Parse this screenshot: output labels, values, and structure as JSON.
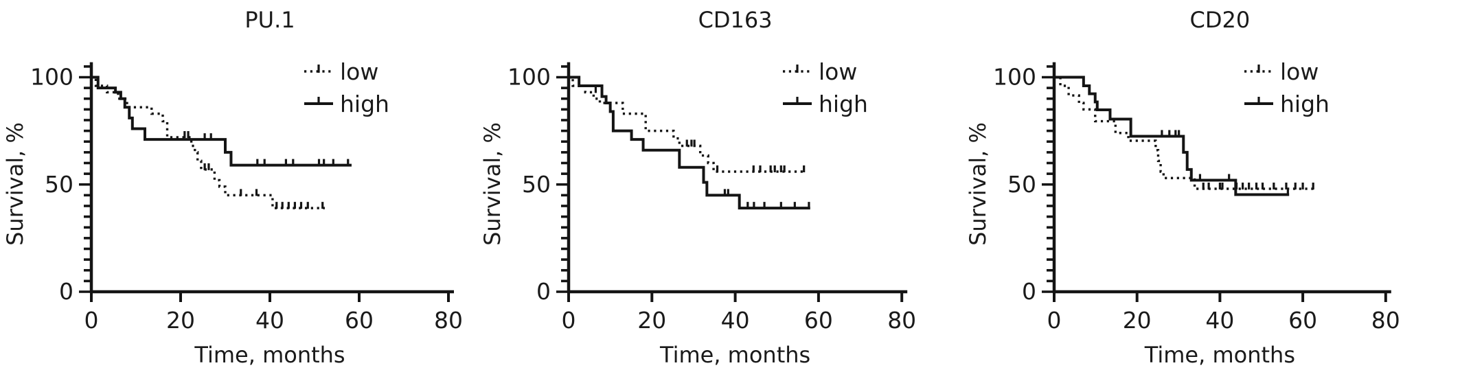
{
  "figure": {
    "background": "#ffffff",
    "line_color": "#141414",
    "text_color": "#1a1a1a",
    "xlabel": "Time, months",
    "ylabel": "Survival, %",
    "x_tick_labels": [
      "0",
      "20",
      "40",
      "60",
      "80"
    ],
    "y_tick_labels": [
      "0",
      "50",
      "100"
    ],
    "legend": {
      "low_label": "low",
      "high_label": "high"
    }
  },
  "chart_data": [
    {
      "type": "line",
      "subtype": "kaplan-meier-step",
      "title": "PU.1",
      "xlabel": "Time, months",
      "ylabel": "Survival, %",
      "xlim": [
        0,
        80
      ],
      "ylim": [
        0,
        105
      ],
      "x_ticks": [
        0,
        20,
        40,
        60,
        80
      ],
      "y_ticks": [
        0,
        50,
        100
      ],
      "y_minor_tick_step": 5,
      "grid": false,
      "legend_position": "top-right",
      "series": [
        {
          "name": "low",
          "style": "dotted",
          "steps": [
            [
              0,
              100
            ],
            [
              1,
              96
            ],
            [
              3.5,
              93
            ],
            [
              6,
              90
            ],
            [
              8,
              86
            ],
            [
              13.5,
              83
            ],
            [
              16,
              79.5
            ],
            [
              17,
              72
            ],
            [
              22.4,
              68
            ],
            [
              23.2,
              65
            ],
            [
              23.8,
              61
            ],
            [
              24.6,
              57
            ],
            [
              27.6,
              52
            ],
            [
              28.7,
              49
            ],
            [
              30,
              45
            ],
            [
              40.6,
              39
            ]
          ],
          "end_time": 52.3,
          "censor_marks": [
            [
              20.9,
              72
            ],
            [
              21.7,
              72
            ],
            [
              25.4,
              57
            ],
            [
              26.3,
              57
            ],
            [
              33.5,
              45
            ],
            [
              37,
              45
            ],
            [
              41.5,
              39
            ],
            [
              42.8,
              39
            ],
            [
              44.2,
              39
            ],
            [
              45.6,
              39
            ],
            [
              47,
              39
            ],
            [
              48.5,
              39
            ],
            [
              51.8,
              39
            ]
          ]
        },
        {
          "name": "high",
          "style": "solid",
          "steps": [
            [
              0,
              100
            ],
            [
              1.5,
              95
            ],
            [
              5.4,
              93
            ],
            [
              6.6,
              90
            ],
            [
              7.5,
              86
            ],
            [
              8.5,
              81
            ],
            [
              9.2,
              76
            ],
            [
              12,
              71
            ],
            [
              30,
              65
            ],
            [
              31.3,
              59
            ]
          ],
          "end_time": 58.3,
          "censor_marks": [
            [
              25.4,
              71
            ],
            [
              26.8,
              71
            ],
            [
              37.2,
              59
            ],
            [
              38.8,
              59
            ],
            [
              43.6,
              59
            ],
            [
              45.2,
              59
            ],
            [
              51,
              59
            ],
            [
              52.1,
              59
            ],
            [
              54.2,
              59
            ],
            [
              57.5,
              59
            ]
          ]
        }
      ]
    },
    {
      "type": "line",
      "subtype": "kaplan-meier-step",
      "title": "CD163",
      "xlabel": "Time, months",
      "ylabel": "Survival, %",
      "xlim": [
        0,
        80
      ],
      "ylim": [
        0,
        105
      ],
      "x_ticks": [
        0,
        20,
        40,
        60,
        80
      ],
      "y_ticks": [
        0,
        50,
        100
      ],
      "y_minor_tick_step": 5,
      "grid": false,
      "legend_position": "top-right",
      "series": [
        {
          "name": "low",
          "style": "dotted",
          "steps": [
            [
              0,
              100
            ],
            [
              1,
              96
            ],
            [
              4,
              93
            ],
            [
              6,
              90
            ],
            [
              7.5,
              88
            ],
            [
              13,
              83
            ],
            [
              18.5,
              75
            ],
            [
              25.2,
              71.5
            ],
            [
              26.6,
              68
            ],
            [
              31.6,
              63.5
            ],
            [
              33.5,
              60
            ],
            [
              34.8,
              56
            ]
          ],
          "end_time": 57,
          "censor_marks": [
            [
              6.5,
              93
            ],
            [
              28.4,
              68
            ],
            [
              29.5,
              68
            ],
            [
              30.2,
              68
            ],
            [
              35.7,
              56
            ],
            [
              44.4,
              56
            ],
            [
              46,
              56
            ],
            [
              48.5,
              56
            ],
            [
              49.5,
              56
            ],
            [
              51,
              56
            ],
            [
              51.8,
              56
            ],
            [
              56.5,
              56
            ]
          ]
        },
        {
          "name": "high",
          "style": "solid",
          "steps": [
            [
              0,
              100
            ],
            [
              2.5,
              96
            ],
            [
              8,
              91
            ],
            [
              9,
              88
            ],
            [
              10,
              84
            ],
            [
              10.7,
              75
            ],
            [
              15.1,
              71
            ],
            [
              17.9,
              66
            ],
            [
              26.6,
              58
            ],
            [
              32.4,
              51
            ],
            [
              33.2,
              45
            ],
            [
              41,
              39
            ]
          ],
          "end_time": 58,
          "censor_marks": [
            [
              37.5,
              45
            ],
            [
              38.3,
              45
            ],
            [
              43,
              39
            ],
            [
              44.5,
              39
            ],
            [
              47,
              39
            ],
            [
              51,
              39
            ],
            [
              54.3,
              39
            ],
            [
              57.7,
              39
            ]
          ]
        }
      ]
    },
    {
      "type": "line",
      "subtype": "kaplan-meier-step",
      "title": "CD20",
      "xlabel": "Time, months",
      "ylabel": "Survival, %",
      "xlim": [
        0,
        80
      ],
      "ylim": [
        0,
        105
      ],
      "x_ticks": [
        0,
        20,
        40,
        60,
        80
      ],
      "y_ticks": [
        0,
        50,
        100
      ],
      "y_minor_tick_step": 5,
      "grid": false,
      "legend_position": "top-right",
      "series": [
        {
          "name": "low",
          "style": "dotted",
          "steps": [
            [
              0,
              100
            ],
            [
              1.5,
              96
            ],
            [
              3.5,
              91.5
            ],
            [
              6,
              88
            ],
            [
              7.1,
              85
            ],
            [
              9.9,
              79.5
            ],
            [
              14.8,
              74
            ],
            [
              17.9,
              70.4
            ],
            [
              24.5,
              66
            ],
            [
              25.1,
              61
            ],
            [
              25.7,
              56
            ],
            [
              26.4,
              53
            ],
            [
              33.9,
              48
            ]
          ],
          "end_time": 63,
          "censor_marks": [
            [
              36,
              48
            ],
            [
              37.3,
              48
            ],
            [
              40,
              48
            ],
            [
              40.6,
              48
            ],
            [
              44,
              48
            ],
            [
              45.5,
              48
            ],
            [
              47,
              48
            ],
            [
              48.8,
              48
            ],
            [
              50.3,
              48
            ],
            [
              53,
              48
            ],
            [
              56,
              48
            ],
            [
              58.2,
              48
            ],
            [
              60,
              48
            ],
            [
              62.5,
              48
            ]
          ]
        },
        {
          "name": "high",
          "style": "solid",
          "steps": [
            [
              0,
              100
            ],
            [
              7.1,
              96
            ],
            [
              8.5,
              92.3
            ],
            [
              9.9,
              88.5
            ],
            [
              10.4,
              84.8
            ],
            [
              13.5,
              80.5
            ],
            [
              18.5,
              72.5
            ],
            [
              31.2,
              65
            ],
            [
              32.1,
              57
            ],
            [
              33.1,
              52
            ],
            [
              43.8,
              45.3
            ]
          ],
          "end_time": 56.7,
          "censor_marks": [
            [
              26,
              72.5
            ],
            [
              27.8,
              72.5
            ],
            [
              29.3,
              72.5
            ],
            [
              30.1,
              72.5
            ],
            [
              35.2,
              52
            ],
            [
              42.2,
              52
            ],
            [
              56.4,
              45.3
            ]
          ]
        }
      ]
    }
  ]
}
